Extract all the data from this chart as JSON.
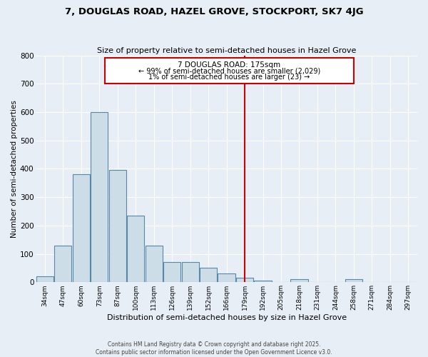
{
  "title1": "7, DOUGLAS ROAD, HAZEL GROVE, STOCKPORT, SK7 4JG",
  "title2": "Size of property relative to semi-detached houses in Hazel Grove",
  "xlabel": "Distribution of semi-detached houses by size in Hazel Grove",
  "ylabel": "Number of semi-detached properties",
  "bin_labels": [
    "34sqm",
    "47sqm",
    "60sqm",
    "73sqm",
    "87sqm",
    "100sqm",
    "113sqm",
    "126sqm",
    "139sqm",
    "152sqm",
    "166sqm",
    "179sqm",
    "192sqm",
    "205sqm",
    "218sqm",
    "231sqm",
    "244sqm",
    "258sqm",
    "271sqm",
    "284sqm",
    "297sqm"
  ],
  "bar_heights": [
    20,
    130,
    380,
    600,
    395,
    235,
    130,
    70,
    70,
    50,
    30,
    15,
    5,
    0,
    10,
    0,
    0,
    10,
    0,
    0,
    0
  ],
  "bar_color": "#ccdde8",
  "bar_edge_color": "#5588aa",
  "vline_x_label": "179sqm",
  "vline_color": "#cc0000",
  "annotation_title": "7 DOUGLAS ROAD: 175sqm",
  "annotation_line1": "← 99% of semi-detached houses are smaller (2,029)",
  "annotation_line2": "1% of semi-detached houses are larger (23) →",
  "annotation_box_color": "#cc0000",
  "ylim": [
    0,
    800
  ],
  "yticks": [
    0,
    100,
    200,
    300,
    400,
    500,
    600,
    700,
    800
  ],
  "background_color": "#e8eef5",
  "grid_color": "#ffffff",
  "footer1": "Contains HM Land Registry data © Crown copyright and database right 2025.",
  "footer2": "Contains public sector information licensed under the Open Government Licence v3.0."
}
